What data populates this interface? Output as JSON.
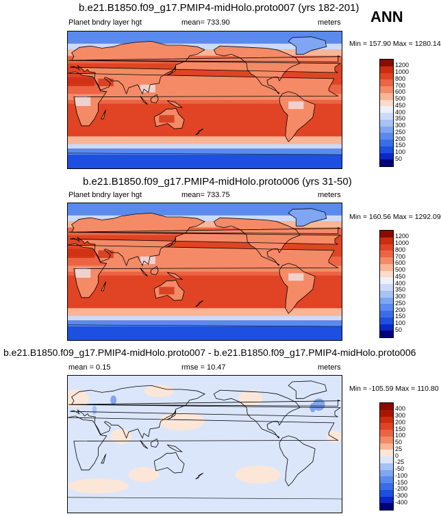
{
  "season": "ANN",
  "panels": [
    {
      "title": "b.e21.B1850.f09_g17.PMIP4-midHolo.proto007 (yrs 182-201)",
      "left_label": "Planet bndry layer hgt",
      "center_label": "mean= 733.90",
      "right_label": "meters",
      "minmax": "Min = 157.90 Max = 1280.14",
      "variant": "full"
    },
    {
      "title": "b.e21.B1850.f09_g17.PMIP4-midHolo.proto006 (yrs 31-50)",
      "left_label": "Planet bndry layer hgt",
      "center_label": "mean= 733.75",
      "right_label": "meters",
      "minmax": "Min = 160.56 Max = 1292.09",
      "variant": "full"
    },
    {
      "title": "b.e21.B1850.f09_g17.PMIP4-midHolo.proto007 - b.e21.B1850.f09_g17.PMIP4-midHolo.proto006",
      "left_label": "mean =   0.15",
      "center_label": "rmse =  10.47",
      "right_label": "meters",
      "minmax": "Min = -105.59 Max = 110.80",
      "variant": "diff"
    }
  ],
  "chart_data": [
    {
      "type": "heatmap",
      "title": "b.e21.B1850.f09_g17.PMIP4-midHolo.proto007 (yrs 182-201)",
      "variable": "Planet bndry layer hgt",
      "units": "meters",
      "mean": 733.9,
      "min": 157.9,
      "max": 1280.14,
      "colorbar_levels": [
        50,
        100,
        150,
        200,
        250,
        300,
        350,
        400,
        450,
        500,
        600,
        700,
        800,
        1000,
        1200
      ],
      "colors": [
        "#00007a",
        "#0a28c8",
        "#1d4fe0",
        "#3a6ee8",
        "#5a8aee",
        "#7ea6f2",
        "#a6c2f6",
        "#cbdaf8",
        "#eef0fa",
        "#fcdcc8",
        "#f9b596",
        "#f48a66",
        "#ec6444",
        "#e04424",
        "#cc2c10",
        "#8a0b00"
      ]
    },
    {
      "type": "heatmap",
      "title": "b.e21.B1850.f09_g17.PMIP4-midHolo.proto006 (yrs 31-50)",
      "variable": "Planet bndry layer hgt",
      "units": "meters",
      "mean": 733.75,
      "min": 160.56,
      "max": 1292.09,
      "colorbar_levels": [
        50,
        100,
        150,
        200,
        250,
        300,
        350,
        400,
        450,
        500,
        600,
        700,
        800,
        1000,
        1200
      ],
      "colors": [
        "#00007a",
        "#0a28c8",
        "#1d4fe0",
        "#3a6ee8",
        "#5a8aee",
        "#7ea6f2",
        "#a6c2f6",
        "#cbdaf8",
        "#eef0fa",
        "#fcdcc8",
        "#f9b596",
        "#f48a66",
        "#ec6444",
        "#e04424",
        "#cc2c10",
        "#8a0b00"
      ]
    },
    {
      "type": "heatmap",
      "title": "b.e21.B1850.f09_g17.PMIP4-midHolo.proto007 - b.e21.B1850.f09_g17.PMIP4-midHolo.proto006",
      "units": "meters",
      "mean": 0.15,
      "rmse": 10.47,
      "min": -105.59,
      "max": 110.8,
      "colorbar_levels": [
        -400,
        -300,
        -200,
        -150,
        -100,
        -50,
        -25,
        0,
        25,
        50,
        100,
        150,
        200,
        300,
        400
      ],
      "colors": [
        "#00007a",
        "#0a28c8",
        "#1d4fe0",
        "#3a6ee8",
        "#5a8aee",
        "#7ea6f2",
        "#a6c2f6",
        "#dbe6fa",
        "#fbe6d8",
        "#f9b596",
        "#f48a66",
        "#ec6444",
        "#e04424",
        "#cc2c10",
        "#a81600",
        "#8a0b00"
      ]
    }
  ]
}
